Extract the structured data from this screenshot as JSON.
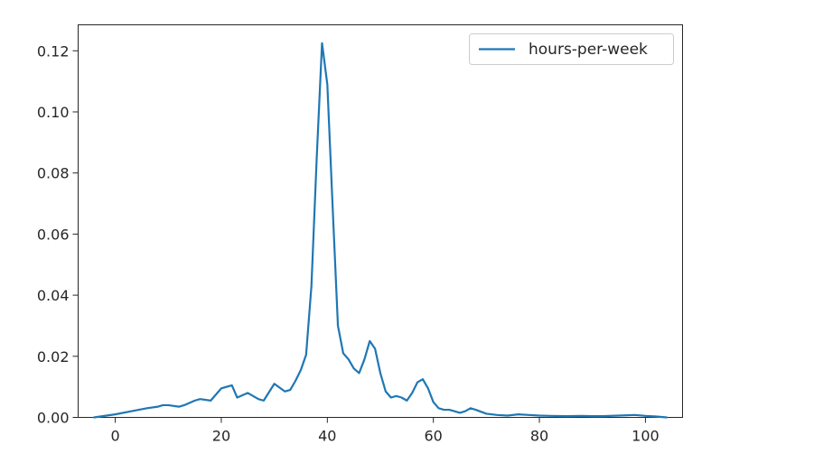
{
  "chart_data": {
    "type": "line",
    "title": "",
    "xlabel": "",
    "ylabel": "",
    "xlim": [
      -7,
      107
    ],
    "ylim": [
      0,
      0.1285
    ],
    "x_ticks": [
      0,
      20,
      40,
      60,
      80,
      100
    ],
    "x_tick_labels": [
      "0",
      "20",
      "40",
      "60",
      "80",
      "100"
    ],
    "y_ticks": [
      0,
      0.02,
      0.04,
      0.06,
      0.08,
      0.1,
      0.12
    ],
    "y_tick_labels": [
      "0.00",
      "0.02",
      "0.04",
      "0.06",
      "0.08",
      "0.10",
      "0.12"
    ],
    "grid": false,
    "legend_position": "top-right",
    "series": [
      {
        "name": "hours-per-week",
        "color": "#1f77b4",
        "x": [
          -4,
          0,
          3,
          6,
          8,
          9,
          10,
          12,
          13,
          15,
          16,
          18,
          19,
          20,
          22,
          23,
          25,
          27,
          28,
          30,
          32,
          33,
          34,
          35,
          36,
          37,
          38,
          39,
          40,
          41,
          42,
          43,
          44,
          45,
          46,
          47,
          48,
          49,
          50,
          51,
          52,
          53,
          54,
          55,
          56,
          57,
          58,
          59,
          60,
          61,
          62,
          63,
          64,
          65,
          66,
          67,
          68,
          70,
          72,
          74,
          76,
          78,
          80,
          82,
          85,
          88,
          90,
          92,
          95,
          98,
          100,
          102,
          104
        ],
        "y": [
          0.0,
          0.001,
          0.002,
          0.003,
          0.0035,
          0.004,
          0.004,
          0.0035,
          0.004,
          0.0055,
          0.006,
          0.0055,
          0.0075,
          0.0095,
          0.0105,
          0.0065,
          0.008,
          0.006,
          0.0055,
          0.011,
          0.0085,
          0.009,
          0.012,
          0.0155,
          0.0205,
          0.043,
          0.085,
          0.1225,
          0.109,
          0.069,
          0.03,
          0.021,
          0.019,
          0.016,
          0.0145,
          0.019,
          0.025,
          0.0225,
          0.0145,
          0.0085,
          0.0065,
          0.007,
          0.0065,
          0.0055,
          0.008,
          0.0115,
          0.0125,
          0.0095,
          0.005,
          0.003,
          0.0025,
          0.0025,
          0.002,
          0.0015,
          0.002,
          0.003,
          0.0025,
          0.0012,
          0.0008,
          0.0006,
          0.001,
          0.0008,
          0.0006,
          0.0005,
          0.0004,
          0.0005,
          0.0004,
          0.0004,
          0.0006,
          0.0008,
          0.0005,
          0.0003,
          0.0
        ]
      }
    ]
  }
}
